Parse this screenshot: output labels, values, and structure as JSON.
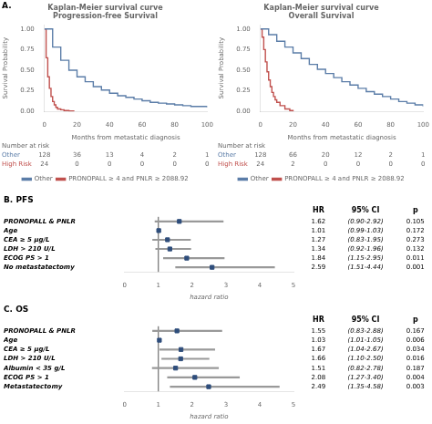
{
  "chart_data": [
    {
      "type": "line",
      "title": "Kaplan-Meier survival curve\nProgression-free Survival",
      "annotations": [
        "A."
      ],
      "x_label": "Months from metastatic diagnosis",
      "y_label": "Survival Probability",
      "series": [
        {
          "name": "Other",
          "color": "#5b7da8",
          "line_style": "step",
          "x": [
            0,
            5,
            10,
            15,
            20,
            25,
            30,
            35,
            40,
            45,
            50,
            55,
            60,
            65,
            70,
            75,
            80,
            85,
            90,
            95,
            100
          ],
          "values": [
            1.0,
            0.78,
            0.62,
            0.5,
            0.42,
            0.36,
            0.3,
            0.26,
            0.22,
            0.19,
            0.17,
            0.15,
            0.13,
            0.11,
            0.1,
            0.09,
            0.08,
            0.07,
            0.06,
            0.06,
            0.05
          ]
        },
        {
          "name": "PRONOPALL ≥ 4 and PNLR ≥ 2088.92",
          "color": "#c0504d",
          "line_style": "step",
          "x": [
            0,
            1,
            2,
            3,
            4,
            5,
            6,
            7,
            8,
            10,
            12,
            15,
            18
          ],
          "values": [
            1.0,
            0.65,
            0.42,
            0.28,
            0.18,
            0.12,
            0.08,
            0.05,
            0.03,
            0.02,
            0.01,
            0.005,
            0.0
          ]
        }
      ],
      "xlim": [
        0,
        100
      ],
      "xticks": [
        0,
        20,
        40,
        60,
        80,
        100
      ],
      "ylim": [
        0,
        1.05
      ],
      "yticks": [
        {
          "value": 0,
          "label": "0.00"
        },
        {
          "value": 0.25,
          "label": "0.25"
        },
        {
          "value": 0.5,
          "label": "0.50"
        },
        {
          "value": 0.75,
          "label": "0.75"
        },
        {
          "value": 1,
          "label": "1.00"
        }
      ],
      "grid": false,
      "legend": "bottom",
      "risk_table": {
        "title": "Number at risk",
        "x": [
          0,
          20,
          40,
          60,
          80,
          100
        ],
        "rows": [
          {
            "name": "Other",
            "color": "#5b7da8",
            "values": [
              128,
              36,
              13,
              4,
              2,
              1
            ]
          },
          {
            "name": "High Risk",
            "color": "#c0504d",
            "values": [
              24,
              0,
              0,
              0,
              0,
              0
            ]
          }
        ]
      }
    },
    {
      "type": "line",
      "title": "Kaplan-Meier survival curve\nOverall Survival",
      "x_label": "Months from metastatic diagnosis",
      "y_label": "Survival Probability",
      "series": [
        {
          "name": "Other",
          "color": "#5b7da8",
          "line_style": "step",
          "x": [
            0,
            5,
            10,
            15,
            20,
            25,
            30,
            35,
            40,
            45,
            50,
            55,
            60,
            65,
            70,
            75,
            80,
            85,
            90,
            95,
            100
          ],
          "values": [
            1.0,
            0.93,
            0.85,
            0.78,
            0.71,
            0.64,
            0.57,
            0.51,
            0.46,
            0.41,
            0.36,
            0.32,
            0.28,
            0.24,
            0.21,
            0.18,
            0.15,
            0.12,
            0.1,
            0.08,
            0.06
          ]
        },
        {
          "name": "PRONOPALL ≥ 4 and PNLR ≥ 2088.92",
          "color": "#c0504d",
          "line_style": "step",
          "x": [
            0,
            1,
            2,
            3,
            4,
            5,
            6,
            7,
            8,
            9,
            10,
            12,
            15,
            18,
            20
          ],
          "values": [
            1.0,
            0.9,
            0.75,
            0.6,
            0.48,
            0.38,
            0.3,
            0.23,
            0.18,
            0.14,
            0.11,
            0.07,
            0.03,
            0.01,
            0.0
          ]
        }
      ],
      "xlim": [
        0,
        100
      ],
      "xticks": [
        0,
        20,
        40,
        60,
        80,
        100
      ],
      "ylim": [
        0,
        1.05
      ],
      "yticks": [
        {
          "value": 0,
          "label": "0.00"
        },
        {
          "value": 0.25,
          "label": "0.25"
        },
        {
          "value": 0.5,
          "label": "0.50"
        },
        {
          "value": 0.75,
          "label": "0.75"
        },
        {
          "value": 1,
          "label": "1.00"
        }
      ],
      "grid": false,
      "legend": "bottom",
      "risk_table": {
        "title": "Number at risk",
        "x": [
          0,
          20,
          40,
          60,
          80,
          100
        ],
        "rows": [
          {
            "name": "Other",
            "color": "#5b7da8",
            "values": [
              128,
              66,
              20,
              12,
              2,
              1
            ]
          },
          {
            "name": "High Risk",
            "color": "#c0504d",
            "values": [
              24,
              2,
              0,
              0,
              0,
              0
            ]
          }
        ]
      }
    },
    {
      "type": "forest",
      "title": "B. PFS",
      "columns": [
        "HR",
        "95% CI",
        "p"
      ],
      "categories": [
        "PRONOPALL & PNLR",
        "Age",
        "CEA ≥ 5 μg/L",
        "LDH > 210 U/L",
        "ECOG PS > 1",
        "No metastatectomy"
      ],
      "values": [
        1.62,
        1.01,
        1.27,
        1.34,
        1.84,
        2.59
      ],
      "color": "#2e4d7b",
      "ci": {
        "low": [
          0.9,
          0.99,
          0.83,
          0.92,
          1.15,
          1.51
        ],
        "high": [
          2.92,
          1.03,
          1.95,
          1.96,
          2.95,
          4.44
        ],
        "labels": [
          "(0.90-2.92)",
          "(0.99-1.03)",
          "(0.83-1.95)",
          "(0.92-1.96)",
          "(1.15-2.95)",
          "(1.51-4.44)"
        ],
        "color": "#999999"
      },
      "p_values": [
        0.105,
        0.172,
        0.273,
        0.132,
        0.011,
        0.001
      ],
      "reference_line": {
        "value": 1,
        "color": "#555555"
      },
      "x_label": "hazard ratio",
      "xlim": [
        0,
        5
      ],
      "xticks": [
        0,
        1,
        2,
        3,
        4,
        5
      ],
      "grid": false
    },
    {
      "type": "forest",
      "title": "C. OS",
      "columns": [
        "HR",
        "95% CI",
        "p"
      ],
      "categories": [
        "PRONOPALL & PNLR",
        "Age",
        "CEA ≥ 5 μg/L",
        "LDH > 210 U/L",
        "Albumin < 35 g/L",
        "ECOG PS > 1",
        "Metastatectomy"
      ],
      "values": [
        1.55,
        1.03,
        1.67,
        1.66,
        1.51,
        2.08,
        2.49
      ],
      "color": "#2e4d7b",
      "ci": {
        "low": [
          0.83,
          1.01,
          1.04,
          1.1,
          0.82,
          1.27,
          1.35
        ],
        "high": [
          2.88,
          1.05,
          2.67,
          2.5,
          2.78,
          3.4,
          4.58
        ],
        "labels": [
          "(0.83-2.88)",
          "(1.01-1.05)",
          "(1.04-2.67)",
          "(1.10-2.50)",
          "(0.82-2.78)",
          "(1.27-3.40)",
          "(1.35-4.58)"
        ],
        "color": "#999999"
      },
      "p_values": [
        0.167,
        0.006,
        0.034,
        0.016,
        0.187,
        0.004,
        0.003
      ],
      "reference_line": {
        "value": 1,
        "color": "#555555"
      },
      "x_label": "hazard ratio",
      "xlim": [
        0,
        5
      ],
      "xticks": [
        0,
        1,
        2,
        3,
        4,
        5
      ],
      "grid": false
    }
  ]
}
